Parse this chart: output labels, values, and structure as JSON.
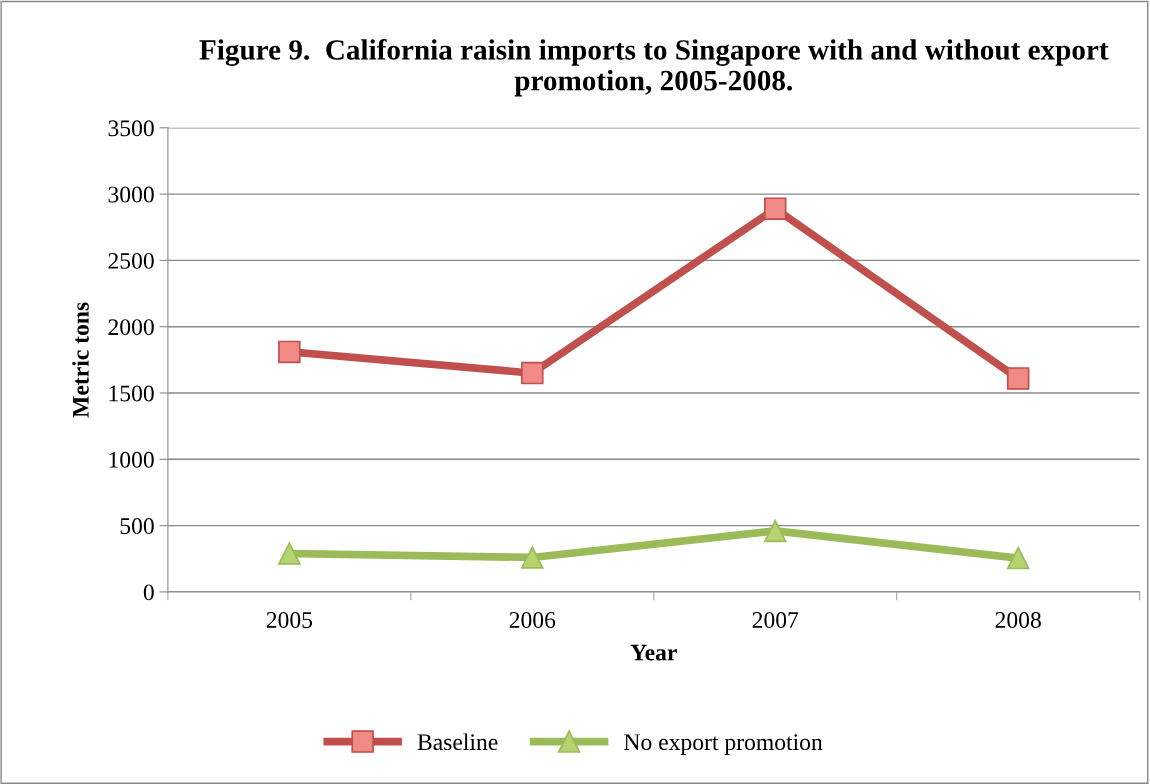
{
  "chart_data": {
    "type": "line",
    "title": "Figure 9.  California raisin imports to Singapore with and without export promotion, 2005-2008.",
    "xlabel": "Year",
    "ylabel": "Metric tons",
    "categories": [
      "2005",
      "2006",
      "2007",
      "2008"
    ],
    "series": [
      {
        "name": "Baseline",
        "color": "#c0504d",
        "marker": "square",
        "values": [
          1810,
          1650,
          2890,
          1610
        ]
      },
      {
        "name": "No export promotion",
        "color": "#9bbb59",
        "marker": "triangle",
        "values": [
          290,
          260,
          460,
          255
        ]
      }
    ],
    "ylim": [
      0,
      3500
    ],
    "yticks": [
      0,
      500,
      1000,
      1500,
      2000,
      2500,
      3000,
      3500
    ],
    "grid": "y",
    "legend": "bottom",
    "line_style": "solid"
  }
}
